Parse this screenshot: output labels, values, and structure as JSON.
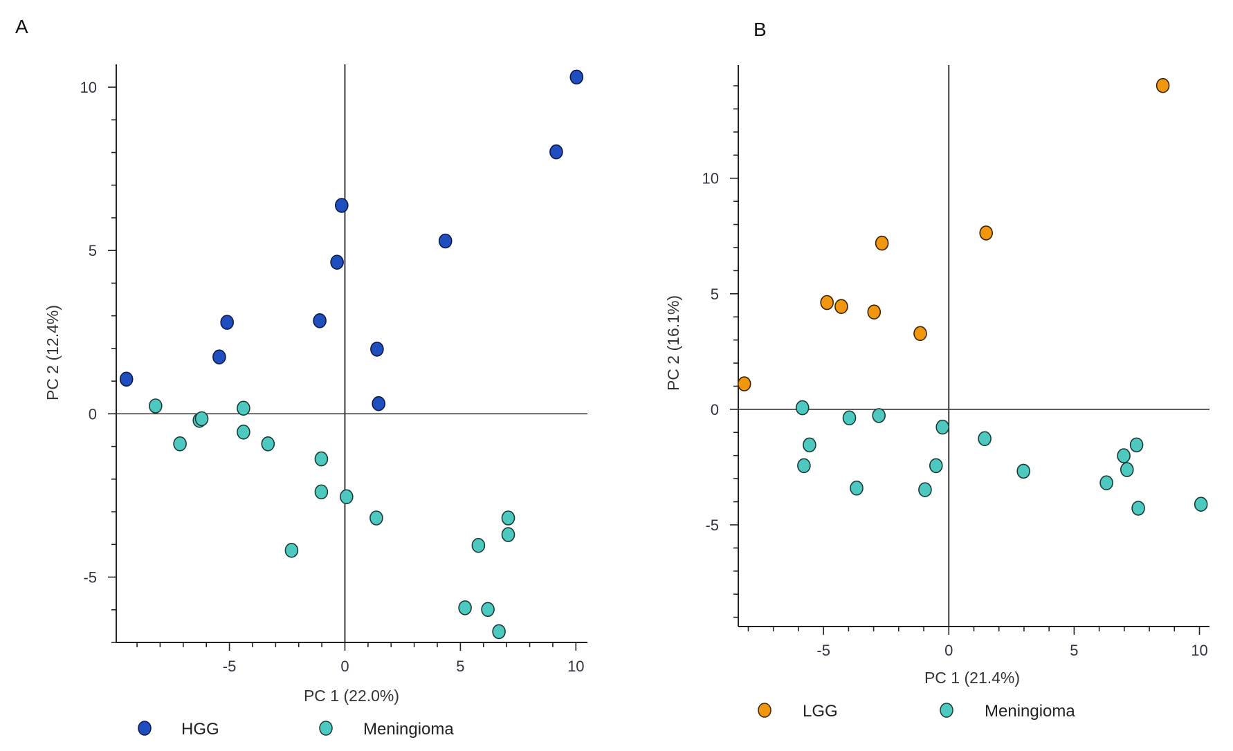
{
  "chart_data": [
    {
      "type": "scatter",
      "panel_label": "A",
      "title": "",
      "xlabel": "PC 1 (22.0%)",
      "ylabel": "PC 2 (12.4%)",
      "xlim": [
        -9.9,
        10.5
      ],
      "ylim": [
        -7.0,
        10.7
      ],
      "xticks": [
        -5,
        0,
        5,
        10
      ],
      "yticks": [
        -5,
        0,
        5,
        10
      ],
      "grid": false,
      "legend_position": "bottom",
      "series": [
        {
          "name": "HGG",
          "color": "#1f4fbf",
          "points": [
            [
              -9.46,
              1.06
            ],
            [
              -5.1,
              2.8
            ],
            [
              -5.44,
              1.74
            ],
            [
              -0.14,
              6.38
            ],
            [
              -0.34,
              4.64
            ],
            [
              -1.09,
              2.85
            ],
            [
              1.39,
              1.98
            ],
            [
              1.46,
              0.31
            ],
            [
              4.35,
              5.29
            ],
            [
              9.15,
              8.02
            ],
            [
              10.03,
              10.31
            ]
          ]
        },
        {
          "name": "Meningioma",
          "color": "#4ec9c0",
          "points": [
            [
              -8.2,
              0.24
            ],
            [
              -6.3,
              -0.2
            ],
            [
              -6.2,
              -0.15
            ],
            [
              -4.39,
              0.17
            ],
            [
              -7.14,
              -0.92
            ],
            [
              -4.39,
              -0.56
            ],
            [
              -3.33,
              -0.92
            ],
            [
              -1.02,
              -1.38
            ],
            [
              -1.02,
              -2.39
            ],
            [
              0.07,
              -2.54
            ],
            [
              -2.31,
              -4.18
            ],
            [
              1.36,
              -3.19
            ],
            [
              5.78,
              -4.03
            ],
            [
              7.07,
              -3.19
            ],
            [
              7.07,
              -3.7
            ],
            [
              5.2,
              -5.94
            ],
            [
              6.19,
              -5.99
            ],
            [
              6.67,
              -6.67
            ]
          ]
        }
      ]
    },
    {
      "type": "scatter",
      "panel_label": "B",
      "title": "",
      "xlabel": "PC 1 (21.4%)",
      "ylabel": "PC 2 (16.1%)",
      "xlim": [
        -8.4,
        10.4
      ],
      "ylim": [
        -9.4,
        14.9
      ],
      "xticks": [
        -5,
        0,
        5,
        10
      ],
      "yticks": [
        -5,
        0,
        5,
        10
      ],
      "grid": false,
      "legend_position": "bottom",
      "series": [
        {
          "name": "LGG",
          "color": "#f0960f",
          "points": [
            [
              -8.16,
              1.1
            ],
            [
              -4.86,
              4.62
            ],
            [
              -4.29,
              4.45
            ],
            [
              -2.98,
              4.21
            ],
            [
              -2.67,
              7.19
            ],
            [
              -1.14,
              3.28
            ],
            [
              1.49,
              7.63
            ],
            [
              8.54,
              14.01
            ]
          ]
        },
        {
          "name": "Meningioma",
          "color": "#4ec9c0",
          "points": [
            [
              -5.84,
              0.07
            ],
            [
              -3.97,
              -0.37
            ],
            [
              -2.79,
              -0.27
            ],
            [
              -5.56,
              -1.54
            ],
            [
              -5.78,
              -2.44
            ],
            [
              -3.68,
              -3.41
            ],
            [
              -0.25,
              -0.77
            ],
            [
              -0.51,
              -2.44
            ],
            [
              -0.95,
              -3.48
            ],
            [
              1.43,
              -1.27
            ],
            [
              2.98,
              -2.68
            ],
            [
              6.29,
              -3.18
            ],
            [
              6.98,
              -2.01
            ],
            [
              7.11,
              -2.61
            ],
            [
              7.49,
              -1.54
            ],
            [
              7.56,
              -4.28
            ],
            [
              10.06,
              -4.11
            ]
          ]
        }
      ]
    }
  ]
}
